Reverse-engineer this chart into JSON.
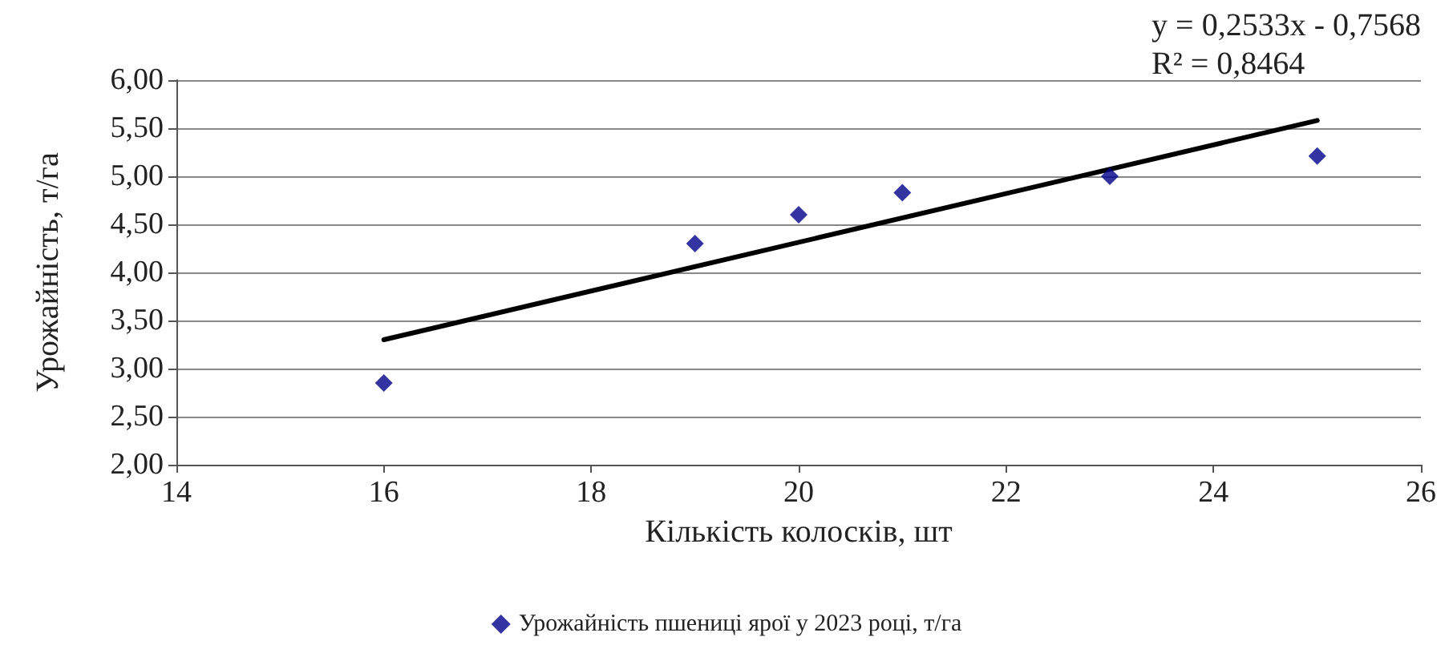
{
  "chart_data": {
    "type": "scatter",
    "xlabel": "Кількість колосків, шт",
    "ylabel": "Урожайність, т/га",
    "annotations": [
      "y = 0,2533x - 0,7568",
      "R² = 0,8464"
    ],
    "series": [
      {
        "name": "Урожайність пшениці ярої у 2023 році, т/га",
        "color": "#00008b",
        "x": [
          16,
          19,
          20,
          21,
          23,
          25
        ],
        "values": [
          2.85,
          4.3,
          4.6,
          4.83,
          5.0,
          5.21
        ],
        "marker": "diamond"
      },
      {
        "type": "line",
        "color": "#000000",
        "x": [
          16,
          25
        ],
        "values": [
          3.3,
          5.58
        ],
        "marker": "none",
        "line_style": "solid"
      }
    ],
    "xlim": [
      14,
      26
    ],
    "xticks": [
      14,
      16,
      18,
      20,
      22,
      24,
      26
    ],
    "ylim": [
      2,
      6
    ],
    "yticks": [
      {
        "value": 2,
        "label": "2,00"
      },
      {
        "value": 2.5,
        "label": "2,50"
      },
      {
        "value": 3,
        "label": "3,00"
      },
      {
        "value": 3.5,
        "label": "3,50"
      },
      {
        "value": 4,
        "label": "4,00"
      },
      {
        "value": 4.5,
        "label": "4,50"
      },
      {
        "value": 5,
        "label": "5,00"
      },
      {
        "value": 5.5,
        "label": "5,50"
      },
      {
        "value": 6,
        "label": "6,00"
      }
    ],
    "grid": "y",
    "legend": "bottom"
  }
}
